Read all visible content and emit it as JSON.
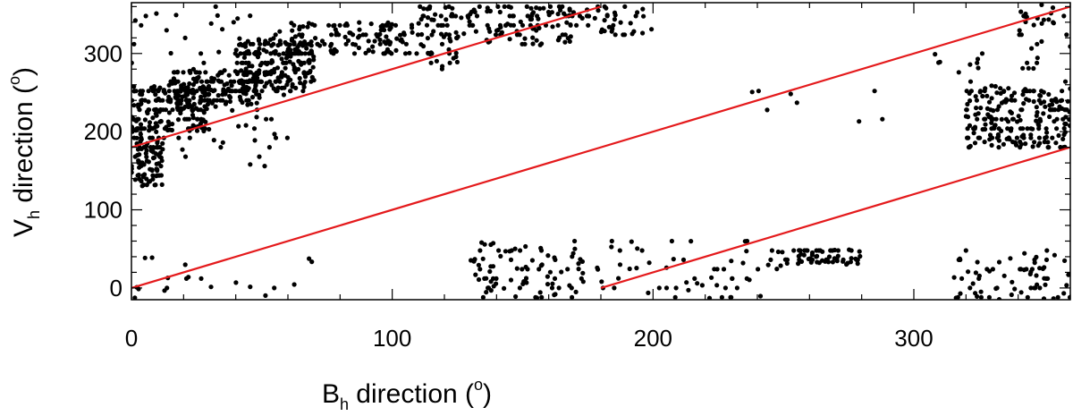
{
  "chart_data": {
    "type": "scatter",
    "title": "",
    "xlabel": {
      "main": "B",
      "subscript": "h",
      "rest": " direction (",
      "superscript": "o",
      "close": ")"
    },
    "ylabel": {
      "main": "V",
      "subscript": "h",
      "rest": " direction (",
      "superscript": "o",
      "close": ")"
    },
    "xlim": [
      0,
      360
    ],
    "ylim": [
      -15,
      365
    ],
    "x_ticks": [
      0,
      100,
      200,
      300
    ],
    "y_ticks": [
      0,
      100,
      200,
      300
    ],
    "grid": false,
    "colors": {
      "points": "#000000",
      "reference_lines": "#e41a1c",
      "axes": "#000000"
    },
    "reference_lines": [
      {
        "points": [
          [
            0,
            0
          ],
          [
            360,
            360
          ]
        ]
      },
      {
        "points": [
          [
            0,
            180
          ],
          [
            180,
            360
          ]
        ]
      },
      {
        "points": [
          [
            180,
            0
          ],
          [
            360,
            180
          ]
        ]
      }
    ],
    "clusters": [
      {
        "x_range": [
          0,
          12
        ],
        "y_range": [
          130,
          200
        ],
        "count": 90
      },
      {
        "x_range": [
          0,
          30
        ],
        "y_range": [
          200,
          260
        ],
        "count": 180
      },
      {
        "x_range": [
          15,
          50
        ],
        "y_range": [
          235,
          280
        ],
        "count": 160
      },
      {
        "x_range": [
          40,
          70
        ],
        "y_range": [
          255,
          320
        ],
        "count": 220
      },
      {
        "x_range": [
          60,
          110
        ],
        "y_range": [
          300,
          340
        ],
        "count": 120
      },
      {
        "x_range": [
          110,
          125
        ],
        "y_range": [
          280,
          360
        ],
        "count": 60
      },
      {
        "x_range": [
          125,
          170
        ],
        "y_range": [
          310,
          360
        ],
        "count": 110
      },
      {
        "x_range": [
          170,
          200
        ],
        "y_range": [
          325,
          360
        ],
        "count": 40
      },
      {
        "x_range": [
          0,
          60
        ],
        "y_range": [
          150,
          360
        ],
        "count": 70
      },
      {
        "x_range": [
          130,
          175
        ],
        "y_range": [
          -15,
          60
        ],
        "count": 90
      },
      {
        "x_range": [
          175,
          250
        ],
        "y_range": [
          -15,
          60
        ],
        "count": 60
      },
      {
        "x_range": [
          250,
          280
        ],
        "y_range": [
          30,
          50
        ],
        "count": 60
      },
      {
        "x_range": [
          315,
          360
        ],
        "y_range": [
          -15,
          45
        ],
        "count": 70
      },
      {
        "x_range": [
          320,
          360
        ],
        "y_range": [
          180,
          260
        ],
        "count": 220
      },
      {
        "x_range": [
          308,
          350
        ],
        "y_range": [
          280,
          300
        ],
        "count": 15
      },
      {
        "x_range": [
          340,
          360
        ],
        "y_range": [
          300,
          365
        ],
        "count": 25
      },
      {
        "x_range": [
          0,
          70
        ],
        "y_range": [
          -15,
          40
        ],
        "count": 20
      },
      {
        "x_range": [
          225,
          300
        ],
        "y_range": [
          210,
          260
        ],
        "count": 8
      }
    ]
  }
}
